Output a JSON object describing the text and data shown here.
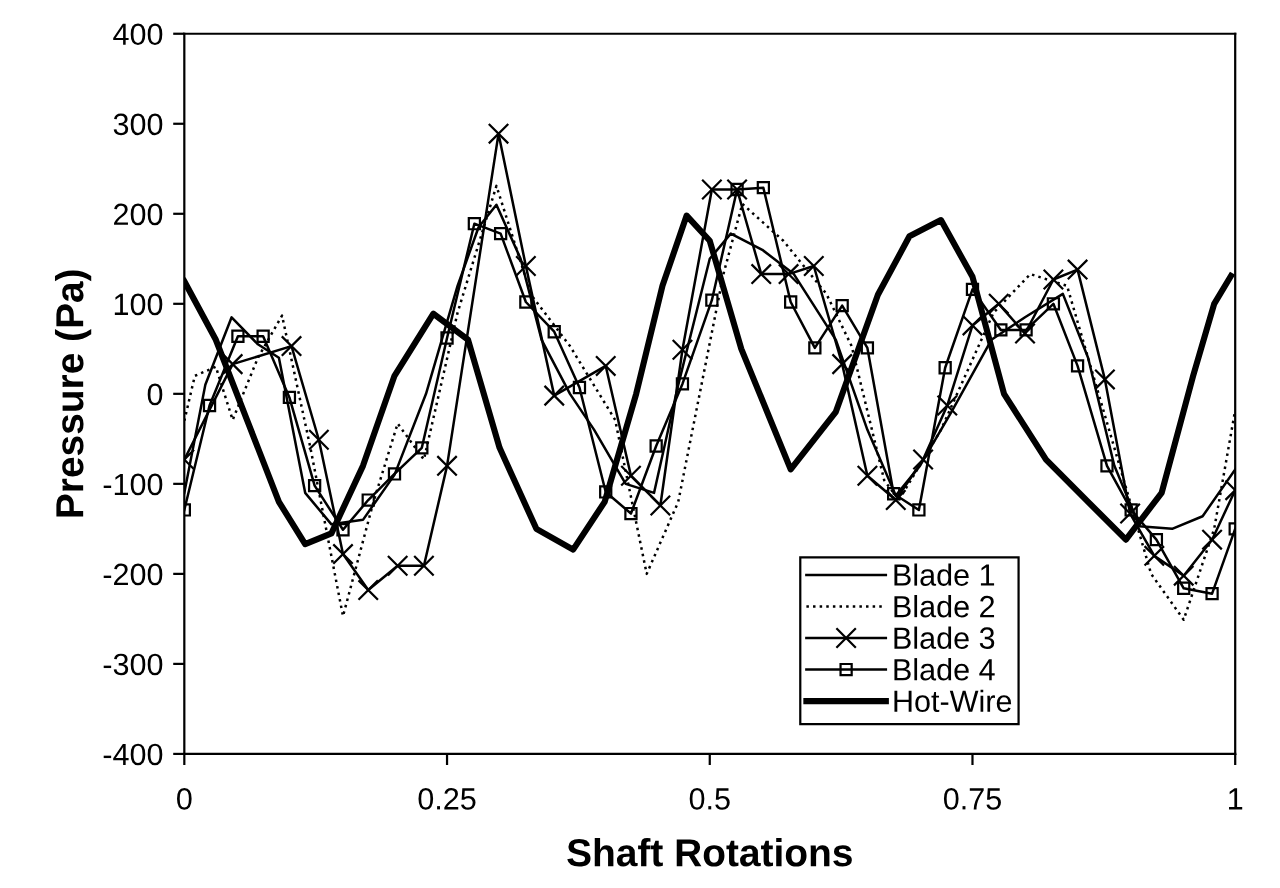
{
  "chart_data": {
    "type": "line",
    "xlabel": "Shaft Rotations",
    "ylabel": "Pressure (Pa)",
    "xlim": [
      0,
      1
    ],
    "xticks": [
      0,
      0.25,
      0.5,
      0.75,
      1
    ],
    "ylim": [
      -400,
      400
    ],
    "yticks": [
      -400,
      -300,
      -200,
      -100,
      0,
      100,
      200,
      300,
      400
    ],
    "grid": false,
    "legend": "bottom",
    "series": [
      {
        "name": "Blade 1",
        "color": "#000000",
        "line_style": "solid",
        "marker": "none",
        "x": [
          0,
          0.02,
          0.045,
          0.07,
          0.09,
          0.115,
          0.14,
          0.17,
          0.2,
          0.23,
          0.26,
          0.28,
          0.297,
          0.32,
          0.34,
          0.367,
          0.39,
          0.42,
          0.447,
          0.47,
          0.5,
          0.52,
          0.55,
          0.58,
          0.62,
          0.65,
          0.677,
          0.7,
          0.73,
          0.768,
          0.8,
          0.836,
          0.86,
          0.885,
          0.909,
          0.94,
          0.969,
          1.0
        ],
        "values": [
          -110,
          10,
          85,
          55,
          40,
          -110,
          -145,
          -140,
          -90,
          0,
          120,
          185,
          210,
          150,
          60,
          0,
          -40,
          -100,
          -110,
          10,
          150,
          178,
          160,
          133,
          60,
          -40,
          -113,
          -80,
          -20,
          60,
          85,
          111,
          40,
          -80,
          -147,
          -150,
          -136,
          -84
        ]
      },
      {
        "name": "Blade 2",
        "color": "#000000",
        "line_style": "dotted",
        "marker": "none",
        "x": [
          0,
          0.01,
          0.03,
          0.046,
          0.07,
          0.093,
          0.12,
          0.151,
          0.18,
          0.203,
          0.228,
          0.26,
          0.297,
          0.33,
          0.367,
          0.41,
          0.44,
          0.47,
          0.513,
          0.531,
          0.57,
          0.611,
          0.635,
          0.666,
          0.68,
          0.72,
          0.77,
          0.805,
          0.84,
          0.88,
          0.92,
          0.951,
          0.98,
          1.0
        ],
        "values": [
          -30,
          20,
          30,
          -29,
          40,
          87,
          -60,
          -247,
          -120,
          -33,
          -73,
          90,
          231,
          110,
          53,
          -29,
          -200,
          -120,
          133,
          211,
          170,
          111,
          53,
          -96,
          -118,
          -40,
          90,
          133,
          120,
          -40,
          -200,
          -251,
          -150,
          -18
        ]
      },
      {
        "name": "Blade 3",
        "color": "#000000",
        "line_style": "solid",
        "marker": "cross",
        "x": [
          0,
          0.046,
          0.102,
          0.128,
          0.151,
          0.175,
          0.203,
          0.228,
          0.25,
          0.299,
          0.325,
          0.352,
          0.401,
          0.425,
          0.453,
          0.474,
          0.502,
          0.526,
          0.549,
          0.575,
          0.599,
          0.626,
          0.65,
          0.677,
          0.703,
          0.726,
          0.75,
          0.775,
          0.8,
          0.827,
          0.85,
          0.876,
          0.9,
          0.923,
          0.951,
          0.978,
          1.0
        ],
        "values": [
          -73,
          33,
          53,
          -51,
          -178,
          -218,
          -191,
          -191,
          -80,
          289,
          142,
          -2,
          31,
          -91,
          -124,
          49,
          227,
          227,
          133,
          133,
          142,
          33,
          -91,
          -118,
          -73,
          -13,
          76,
          100,
          67,
          127,
          138,
          16,
          -133,
          -180,
          -202,
          -162,
          -107
        ]
      },
      {
        "name": "Blade 4",
        "color": "#000000",
        "line_style": "solid",
        "marker": "square",
        "x": [
          0,
          0.024,
          0.051,
          0.075,
          0.1,
          0.124,
          0.151,
          0.175,
          0.2,
          0.226,
          0.25,
          0.276,
          0.301,
          0.325,
          0.352,
          0.376,
          0.401,
          0.425,
          0.449,
          0.474,
          0.502,
          0.526,
          0.551,
          0.577,
          0.6,
          0.626,
          0.65,
          0.675,
          0.699,
          0.724,
          0.75,
          0.777,
          0.801,
          0.827,
          0.85,
          0.878,
          0.901,
          0.925,
          0.951,
          0.978,
          1.0
        ],
        "values": [
          -129,
          -13,
          64,
          64,
          -4,
          -102,
          -151,
          -118,
          -89,
          -60,
          62,
          189,
          178,
          102,
          69,
          7,
          -109,
          -133,
          -58,
          11,
          104,
          227,
          229,
          102,
          51,
          98,
          51,
          -111,
          -129,
          29,
          116,
          71,
          71,
          100,
          31,
          -80,
          -129,
          -162,
          -216,
          -222,
          -150
        ]
      },
      {
        "name": "Hot-Wire",
        "color": "#000000",
        "line_style": "solid",
        "marker": "none",
        "x": [
          0,
          0.03,
          0.06,
          0.09,
          0.115,
          0.14,
          0.17,
          0.2,
          0.237,
          0.27,
          0.3,
          0.335,
          0.37,
          0.4,
          0.43,
          0.455,
          0.478,
          0.5,
          0.53,
          0.577,
          0.62,
          0.66,
          0.69,
          0.72,
          0.75,
          0.78,
          0.82,
          0.86,
          0.896,
          0.93,
          0.96,
          0.98,
          0.996
        ],
        "values": [
          125,
          60,
          -30,
          -120,
          -167,
          -155,
          -80,
          20,
          89,
          60,
          -60,
          -150,
          -173,
          -120,
          0,
          120,
          198,
          170,
          50,
          -84,
          -20,
          110,
          175,
          193,
          130,
          0,
          -73,
          -120,
          -162,
          -110,
          20,
          100,
          131
        ]
      }
    ]
  }
}
